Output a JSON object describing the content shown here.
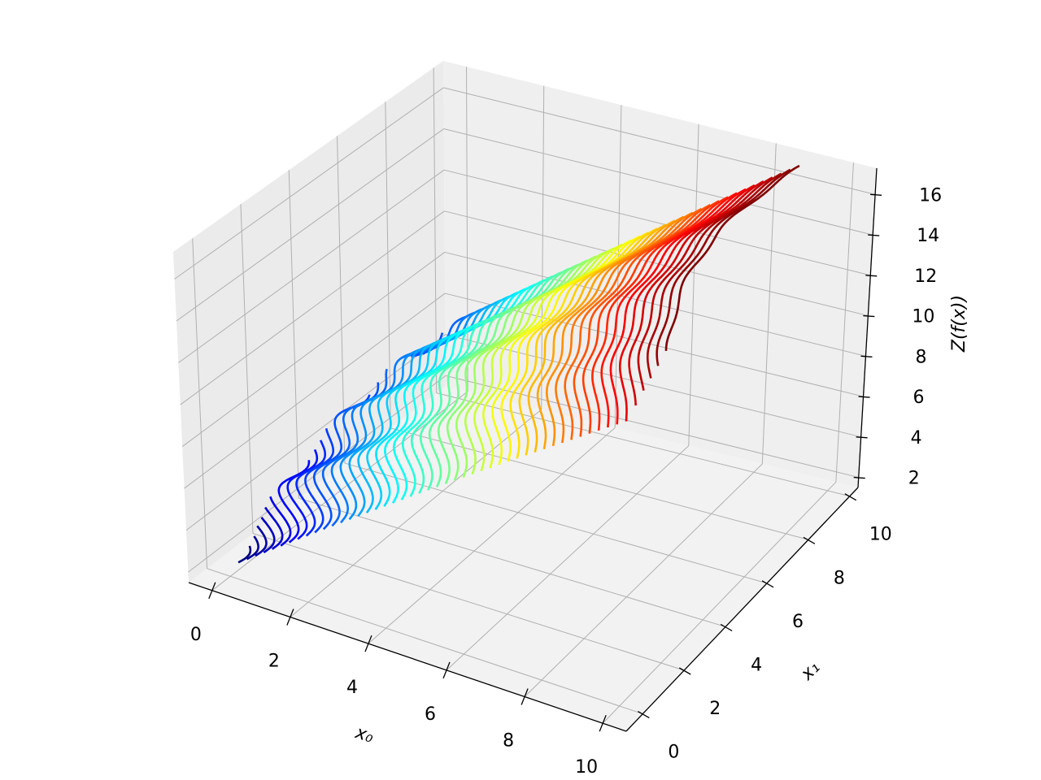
{
  "chart_data": {
    "type": "contour3d",
    "x_label": "x₀",
    "y_label": "x₁",
    "z_label": "Z(f(x))",
    "xlim": [
      -0.6,
      10.6
    ],
    "ylim": [
      -0.8,
      10.4
    ],
    "zlim": [
      1.5,
      17.3
    ],
    "xticks": [
      0,
      2,
      4,
      6,
      8,
      10
    ],
    "yticks": [
      0,
      2,
      4,
      6,
      8,
      10
    ],
    "zticks": [
      2,
      4,
      6,
      8,
      10,
      12,
      14,
      16
    ],
    "grid": true,
    "colormap": "jet",
    "levels": [
      2.3,
      2.6,
      2.9,
      3.2,
      3.5,
      3.8,
      4.1,
      4.4,
      4.7,
      5.0,
      5.3,
      5.6,
      5.9,
      6.2,
      6.5,
      6.8,
      7.1,
      7.4,
      7.7,
      8.0,
      8.3,
      8.6,
      8.9,
      9.2,
      9.5,
      9.8,
      10.1,
      10.4,
      10.7,
      11.0,
      11.3,
      11.6,
      11.9,
      12.2,
      12.5,
      12.8,
      13.1,
      13.4,
      13.7,
      14.0,
      14.3,
      14.6,
      14.9,
      15.2,
      15.5,
      15.8,
      16.1,
      16.4,
      16.7,
      17.0
    ]
  }
}
